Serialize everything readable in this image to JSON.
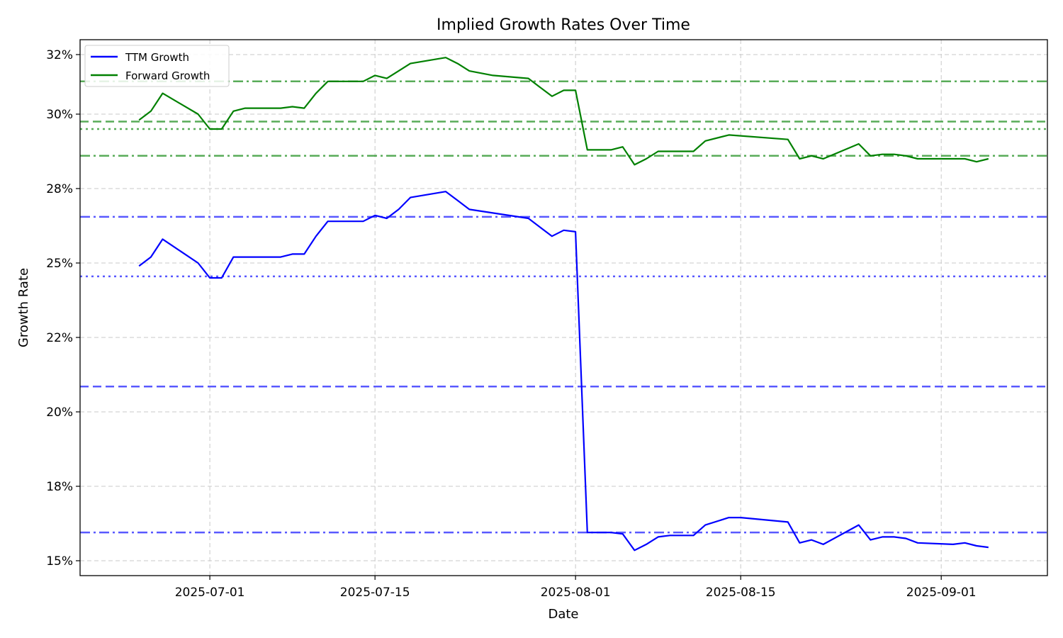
{
  "chart_data": {
    "type": "line",
    "title": "Implied Growth Rates Over Time",
    "xlabel": "Date",
    "ylabel": "Growth Rate",
    "x_range": [
      "2025-06-20",
      "2025-09-10"
    ],
    "ylim": [
      14.5,
      32.5
    ],
    "y_ticks": [
      15,
      17.5,
      20,
      22.5,
      25,
      27.5,
      30,
      32
    ],
    "y_tick_labels": [
      "15%",
      "18%",
      "20%",
      "22%",
      "25%",
      "28%",
      "30%",
      "32%"
    ],
    "x_ticks": [
      "2025-07-01",
      "2025-07-15",
      "2025-08-01",
      "2025-08-15",
      "2025-09-01"
    ],
    "x_tick_labels": [
      "2025-07-01",
      "2025-07-15",
      "2025-08-01",
      "2025-08-15",
      "2025-09-01"
    ],
    "grid": true,
    "legend": "top-left",
    "series": [
      {
        "name": "TTM Growth",
        "color": "#0000ff",
        "points": [
          [
            "2025-06-25",
            24.9
          ],
          [
            "2025-06-26",
            25.2
          ],
          [
            "2025-06-27",
            25.8
          ],
          [
            "2025-06-30",
            25.0
          ],
          [
            "2025-07-01",
            24.5
          ],
          [
            "2025-07-02",
            24.5
          ],
          [
            "2025-07-03",
            25.2
          ],
          [
            "2025-07-04",
            25.2
          ],
          [
            "2025-07-07",
            25.2
          ],
          [
            "2025-07-08",
            25.3
          ],
          [
            "2025-07-09",
            25.3
          ],
          [
            "2025-07-10",
            25.9
          ],
          [
            "2025-07-11",
            26.4
          ],
          [
            "2025-07-12",
            26.4
          ],
          [
            "2025-07-14",
            26.4
          ],
          [
            "2025-07-15",
            26.6
          ],
          [
            "2025-07-16",
            26.5
          ],
          [
            "2025-07-17",
            26.8
          ],
          [
            "2025-07-18",
            27.2
          ],
          [
            "2025-07-21",
            27.4
          ],
          [
            "2025-07-22",
            27.1
          ],
          [
            "2025-07-23",
            26.8
          ],
          [
            "2025-07-28",
            26.5
          ],
          [
            "2025-07-29",
            26.2
          ],
          [
            "2025-07-30",
            25.9
          ],
          [
            "2025-07-31",
            26.1
          ],
          [
            "2025-08-01",
            26.05
          ],
          [
            "2025-08-02",
            15.95
          ],
          [
            "2025-08-04",
            15.95
          ],
          [
            "2025-08-05",
            15.9
          ],
          [
            "2025-08-06",
            15.35
          ],
          [
            "2025-08-07",
            15.55
          ],
          [
            "2025-08-08",
            15.8
          ],
          [
            "2025-08-09",
            15.85
          ],
          [
            "2025-08-11",
            15.85
          ],
          [
            "2025-08-12",
            16.2
          ],
          [
            "2025-08-14",
            16.45
          ],
          [
            "2025-08-15",
            16.45
          ],
          [
            "2025-08-19",
            16.3
          ],
          [
            "2025-08-20",
            15.6
          ],
          [
            "2025-08-21",
            15.7
          ],
          [
            "2025-08-22",
            15.55
          ],
          [
            "2025-08-25",
            16.2
          ],
          [
            "2025-08-26",
            15.7
          ],
          [
            "2025-08-27",
            15.8
          ],
          [
            "2025-08-28",
            15.8
          ],
          [
            "2025-08-29",
            15.75
          ],
          [
            "2025-08-30",
            15.6
          ],
          [
            "2025-09-02",
            15.55
          ],
          [
            "2025-09-03",
            15.6
          ],
          [
            "2025-09-04",
            15.5
          ],
          [
            "2025-09-05",
            15.45
          ]
        ]
      },
      {
        "name": "Forward Growth",
        "color": "#008000",
        "points": [
          [
            "2025-06-25",
            29.8
          ],
          [
            "2025-06-26",
            30.1
          ],
          [
            "2025-06-27",
            30.7
          ],
          [
            "2025-06-30",
            30.0
          ],
          [
            "2025-07-01",
            29.5
          ],
          [
            "2025-07-02",
            29.5
          ],
          [
            "2025-07-03",
            30.1
          ],
          [
            "2025-07-04",
            30.2
          ],
          [
            "2025-07-07",
            30.2
          ],
          [
            "2025-07-08",
            30.25
          ],
          [
            "2025-07-09",
            30.2
          ],
          [
            "2025-07-10",
            30.7
          ],
          [
            "2025-07-11",
            31.1
          ],
          [
            "2025-07-12",
            31.1
          ],
          [
            "2025-07-14",
            31.1
          ],
          [
            "2025-07-15",
            31.3
          ],
          [
            "2025-07-16",
            31.2
          ],
          [
            "2025-07-17",
            31.45
          ],
          [
            "2025-07-18",
            31.7
          ],
          [
            "2025-07-21",
            31.9
          ],
          [
            "2025-07-22",
            31.7
          ],
          [
            "2025-07-23",
            31.45
          ],
          [
            "2025-07-25",
            31.3
          ],
          [
            "2025-07-28",
            31.2
          ],
          [
            "2025-07-29",
            30.9
          ],
          [
            "2025-07-30",
            30.6
          ],
          [
            "2025-07-31",
            30.8
          ],
          [
            "2025-08-01",
            30.8
          ],
          [
            "2025-08-02",
            28.8
          ],
          [
            "2025-08-04",
            28.8
          ],
          [
            "2025-08-05",
            28.9
          ],
          [
            "2025-08-06",
            28.3
          ],
          [
            "2025-08-07",
            28.5
          ],
          [
            "2025-08-08",
            28.75
          ],
          [
            "2025-08-09",
            28.75
          ],
          [
            "2025-08-11",
            28.75
          ],
          [
            "2025-08-12",
            29.1
          ],
          [
            "2025-08-14",
            29.3
          ],
          [
            "2025-08-19",
            29.15
          ],
          [
            "2025-08-20",
            28.5
          ],
          [
            "2025-08-21",
            28.6
          ],
          [
            "2025-08-22",
            28.5
          ],
          [
            "2025-08-25",
            29.0
          ],
          [
            "2025-08-26",
            28.6
          ],
          [
            "2025-08-27",
            28.65
          ],
          [
            "2025-08-28",
            28.65
          ],
          [
            "2025-08-29",
            28.6
          ],
          [
            "2025-08-30",
            28.5
          ],
          [
            "2025-09-02",
            28.5
          ],
          [
            "2025-09-03",
            28.5
          ],
          [
            "2025-09-04",
            28.4
          ],
          [
            "2025-09-05",
            28.5
          ]
        ]
      }
    ],
    "reference_lines": [
      {
        "y": 31.1,
        "color": "#008000",
        "style": "dashdot"
      },
      {
        "y": 29.75,
        "color": "#008000",
        "style": "dashed"
      },
      {
        "y": 29.5,
        "color": "#008000",
        "style": "dotted"
      },
      {
        "y": 28.6,
        "color": "#008000",
        "style": "dashdot"
      },
      {
        "y": 26.55,
        "color": "#0000ff",
        "style": "dashdot"
      },
      {
        "y": 24.55,
        "color": "#0000ff",
        "style": "dotted"
      },
      {
        "y": 20.85,
        "color": "#0000ff",
        "style": "dashed"
      },
      {
        "y": 15.95,
        "color": "#0000ff",
        "style": "dashdot"
      }
    ]
  }
}
